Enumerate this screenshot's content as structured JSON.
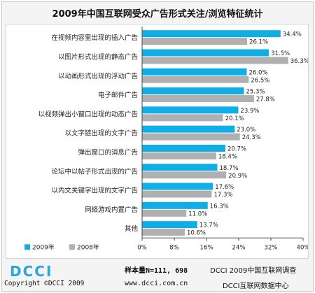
{
  "title": "2009年中国互联网受众广告形式关注/浏览特征统计",
  "colors": {
    "series_2009": "#11aee5",
    "series_2008": "#b0b0b0",
    "logo": "#2aa7d8"
  },
  "chart_data": {
    "type": "bar",
    "orientation": "horizontal",
    "categories": [
      "在视频内容里出现的插入广告",
      "以图片形式出现的静态广告",
      "以动画形式出现的浮动广告",
      "电子邮件广告",
      "以视频弹出小窗口出现的动态广告",
      "以文字链出现的文字广告",
      "弹出窗口的消息广告",
      "论坛中以帖子形式出现的广告",
      "以内文关键字出现的文字广告",
      "网络游戏内置广告",
      "其他"
    ],
    "series": [
      {
        "name": "2009年",
        "values": [
          34.4,
          31.5,
          26.0,
          25.3,
          23.9,
          23.0,
          20.7,
          18.7,
          17.6,
          16.3,
          13.7
        ],
        "labels": [
          "34.4%",
          "31.5%",
          "26.0%",
          "25.3%",
          "23.9%",
          "23.0%",
          "20.7%",
          "18.7%",
          "17.6%",
          "16.3%",
          "13.7%"
        ]
      },
      {
        "name": "2008年",
        "values": [
          26.1,
          36.3,
          26.5,
          27.8,
          20.1,
          24.3,
          18.4,
          20.9,
          17.3,
          11.0,
          10.6
        ],
        "labels": [
          "26.1%",
          "36.3%",
          "26.5%",
          "27.8%",
          "20.1%",
          "24.3%",
          "18.4%",
          "20.9%",
          "17.3%",
          "11.0%",
          "10.6%"
        ]
      }
    ],
    "xlim": [
      0,
      40
    ],
    "xticks": [
      "0%",
      "8%",
      "16%",
      "24%",
      "32%",
      "40%"
    ],
    "xtick_values": [
      0,
      8,
      16,
      24,
      32,
      40
    ],
    "legend": {
      "position": "bottom-left",
      "items": [
        "2009年",
        "2008年"
      ]
    },
    "grid": false
  },
  "footer": {
    "logo_text": "DCCI",
    "copyright": "Copyright ©DCCI 2009",
    "sample": "样本量N=111, 698",
    "website": "www.dcci.com.cn",
    "source_line1": "DCCI 2009中国互联网调查",
    "source_line2": "DCCI互联网数据中心"
  }
}
